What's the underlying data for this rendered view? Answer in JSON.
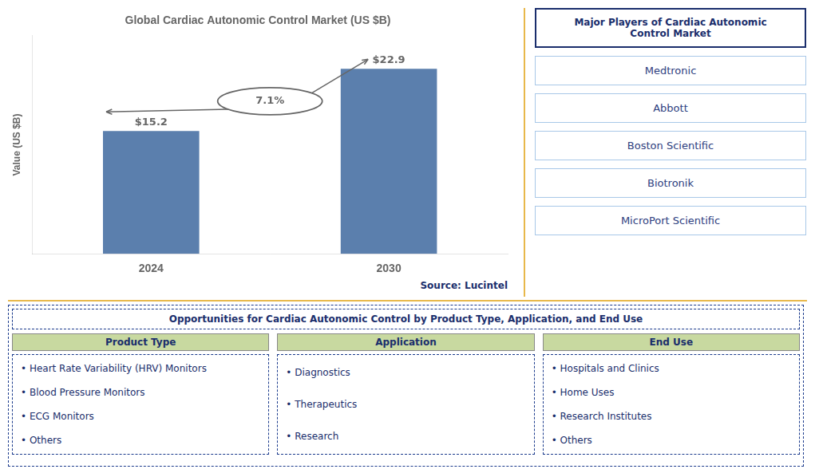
{
  "chart_data": {
    "type": "bar",
    "title": "Global Cardiac Autonomic Control Market (US $B)",
    "categories": [
      "2024",
      "2030"
    ],
    "values": [
      15.2,
      22.9
    ],
    "value_labels": [
      "$15.2",
      "$22.9"
    ],
    "data_labels": true,
    "color": "#5b7fad",
    "ylabel": "Value (US $B)",
    "ylim": [
      0,
      27
    ],
    "tick_labels": "x",
    "grid": false,
    "annotations": [
      "7.1%",
      "Source: Lucintel"
    ]
  },
  "side_panel": {
    "title": "Major Players of Cardiac Autonomic\nControl Market",
    "items": [
      "Medtronic",
      "Abbott",
      "Boston Scientific",
      "Biotronik",
      "MicroPort Scientific"
    ]
  },
  "bottom_panel": {
    "title": "Opportunities for Cardiac Autonomic Control by Product Type, Application, and End Use",
    "columns": [
      {
        "header": "Product Type",
        "items": [
          "• Heart Rate Variability (HRV) Monitors",
          "• Blood Pressure Monitors",
          "• ECG Monitors",
          "• Others"
        ]
      },
      {
        "header": "Application",
        "items": [
          "• Diagnostics",
          "• Therapeutics",
          "• Research"
        ]
      },
      {
        "header": "End Use",
        "items": [
          "• Hospitals and Clinics",
          "• Home Uses",
          "• Research Institutes",
          "• Others"
        ]
      }
    ]
  }
}
